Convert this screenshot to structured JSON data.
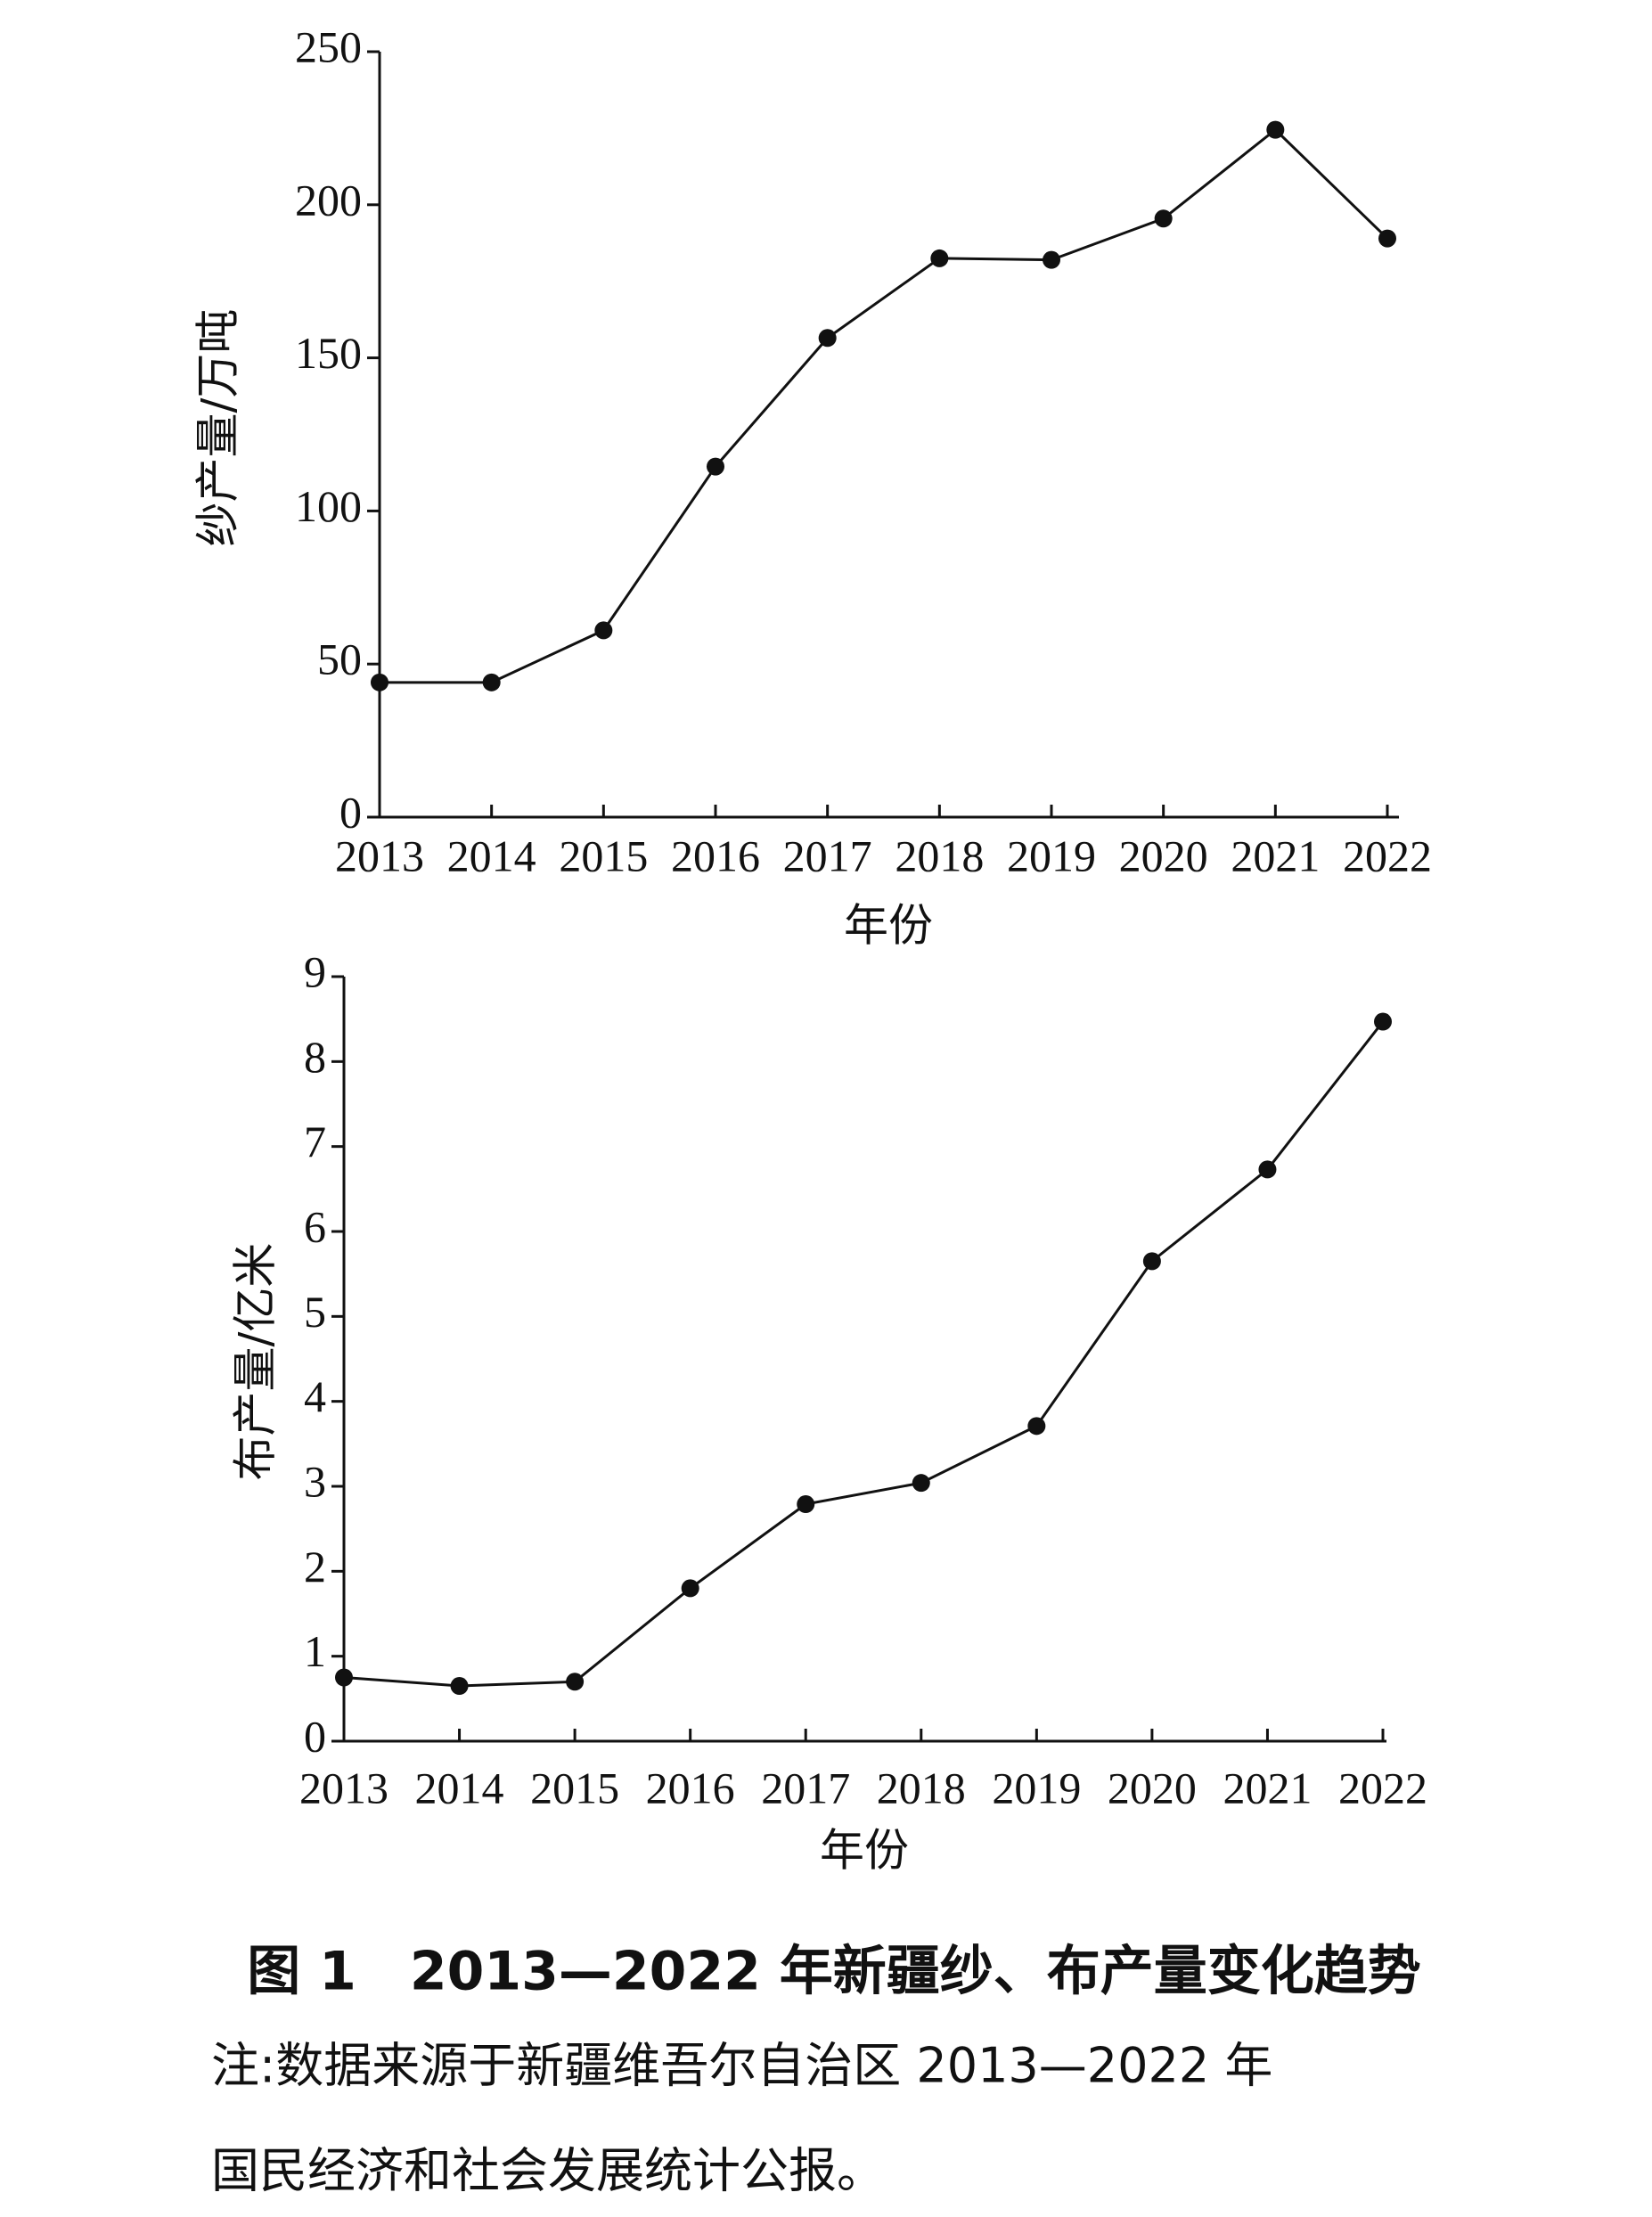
{
  "chart_data": [
    {
      "type": "line",
      "ylabel": "纱产量/万吨",
      "xlabel": "年份",
      "categories": [
        "2013",
        "2014",
        "2015",
        "2016",
        "2017",
        "2018",
        "2019",
        "2020",
        "2021",
        "2022"
      ],
      "values": [
        44,
        44,
        61,
        114.5,
        156.5,
        182.5,
        182,
        195.5,
        224.5,
        189
      ],
      "color": "#111111",
      "ylim": [
        0,
        250
      ],
      "yticks": [
        0,
        50,
        100,
        150,
        200,
        250
      ]
    },
    {
      "type": "line",
      "ylabel": "布产量/亿米",
      "xlabel": "年份",
      "categories": [
        "2013",
        "2014",
        "2015",
        "2016",
        "2017",
        "2018",
        "2019",
        "2020",
        "2021",
        "2022"
      ],
      "values": [
        0.75,
        0.65,
        0.7,
        1.8,
        2.79,
        3.04,
        3.71,
        5.65,
        6.73,
        8.47
      ],
      "color": "#111111",
      "ylim": [
        0,
        9
      ],
      "yticks": [
        0,
        1,
        2,
        3,
        4,
        5,
        6,
        7,
        8,
        9
      ]
    }
  ],
  "caption": "图 1　2013—2022 年新疆纱、布产量变化趋势",
  "note": [
    "注:数据来源于新疆维吾尔自治区 2013—2022 年",
    "国民经济和社会发展统计公报。"
  ]
}
